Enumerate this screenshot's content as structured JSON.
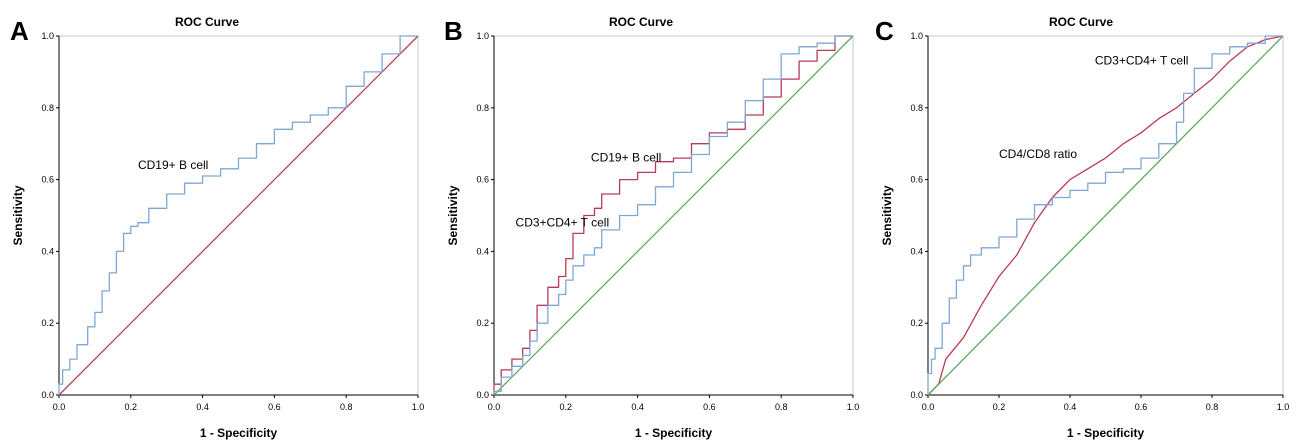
{
  "colors": {
    "blue": "#7fa7d4",
    "red": "#b83a5b",
    "green": "#5fa85f"
  },
  "chart_data": [
    {
      "panel": "A",
      "type": "line",
      "title": "ROC Curve",
      "xlabel": "1 - Specificity",
      "ylabel": "Sensitivity",
      "xlim": [
        0,
        1
      ],
      "ylim": [
        0,
        1
      ],
      "xticks": [
        "0.0",
        "0.2",
        "0.4",
        "0.6",
        "0.8",
        "1.0"
      ],
      "yticks": [
        "0.0",
        "0.2",
        "0.4",
        "0.6",
        "0.8",
        "1.0"
      ],
      "series": [
        {
          "color": "#7fa7d4",
          "step": true,
          "x": [
            0,
            0.01,
            0.03,
            0.05,
            0.08,
            0.1,
            0.12,
            0.14,
            0.16,
            0.18,
            0.2,
            0.22,
            0.25,
            0.3,
            0.35,
            0.4,
            0.45,
            0.5,
            0.55,
            0.6,
            0.65,
            0.7,
            0.75,
            0.8,
            0.85,
            0.9,
            0.95,
            1.0
          ],
          "y": [
            0,
            0.03,
            0.07,
            0.1,
            0.14,
            0.19,
            0.23,
            0.29,
            0.34,
            0.4,
            0.45,
            0.47,
            0.48,
            0.52,
            0.56,
            0.59,
            0.61,
            0.63,
            0.66,
            0.7,
            0.74,
            0.76,
            0.78,
            0.8,
            0.86,
            0.9,
            0.95,
            1.0
          ]
        },
        {
          "color": "#b83a5b",
          "step": false,
          "x": [
            0,
            1
          ],
          "y": [
            0,
            1
          ]
        }
      ],
      "annotations": [
        {
          "text": "CD19+ B cell",
          "x": 0.22,
          "y": 0.63
        }
      ]
    },
    {
      "panel": "B",
      "type": "line",
      "title": "ROC Curve",
      "xlabel": "1 - Specificity",
      "ylabel": "Sensitivity",
      "xlim": [
        0,
        1
      ],
      "ylim": [
        0,
        1
      ],
      "xticks": [
        "0.0",
        "0.2",
        "0.4",
        "0.6",
        "0.8",
        "1.0"
      ],
      "yticks": [
        "0.0",
        "0.2",
        "0.4",
        "0.6",
        "0.8",
        "1.0"
      ],
      "series": [
        {
          "color": "#b83a5b",
          "step": true,
          "x": [
            0,
            0.02,
            0.05,
            0.08,
            0.1,
            0.12,
            0.15,
            0.18,
            0.2,
            0.22,
            0.25,
            0.28,
            0.3,
            0.35,
            0.4,
            0.45,
            0.5,
            0.55,
            0.6,
            0.65,
            0.7,
            0.75,
            0.8,
            0.85,
            0.9,
            0.95,
            1.0
          ],
          "y": [
            0,
            0.03,
            0.07,
            0.1,
            0.13,
            0.18,
            0.25,
            0.3,
            0.33,
            0.38,
            0.45,
            0.5,
            0.52,
            0.56,
            0.6,
            0.62,
            0.65,
            0.66,
            0.7,
            0.73,
            0.74,
            0.78,
            0.83,
            0.88,
            0.93,
            0.96,
            1.0
          ]
        },
        {
          "color": "#7fa7d4",
          "step": true,
          "x": [
            0,
            0.02,
            0.05,
            0.08,
            0.1,
            0.12,
            0.15,
            0.18,
            0.2,
            0.22,
            0.25,
            0.28,
            0.3,
            0.35,
            0.4,
            0.45,
            0.5,
            0.55,
            0.6,
            0.65,
            0.7,
            0.75,
            0.8,
            0.85,
            0.9,
            0.95,
            1.0
          ],
          "y": [
            0,
            0.01,
            0.05,
            0.08,
            0.11,
            0.15,
            0.2,
            0.25,
            0.28,
            0.32,
            0.36,
            0.39,
            0.41,
            0.46,
            0.5,
            0.53,
            0.58,
            0.62,
            0.67,
            0.72,
            0.76,
            0.82,
            0.88,
            0.95,
            0.97,
            0.98,
            1.0
          ]
        },
        {
          "color": "#5fa85f",
          "step": false,
          "x": [
            0,
            1
          ],
          "y": [
            0,
            1
          ]
        }
      ],
      "annotations": [
        {
          "text": "CD19+ B cell",
          "x": 0.27,
          "y": 0.65
        },
        {
          "text": "CD3+CD4+ T cell",
          "x": 0.06,
          "y": 0.47
        }
      ]
    },
    {
      "panel": "C",
      "type": "line",
      "title": "ROC Curve",
      "xlabel": "1 - Specificity",
      "ylabel": "Sensitivity",
      "xlim": [
        0,
        1
      ],
      "ylim": [
        0,
        1
      ],
      "xticks": [
        "0.0",
        "0.2",
        "0.4",
        "0.6",
        "0.8",
        "1.0"
      ],
      "yticks": [
        "0.0",
        "0.2",
        "0.4",
        "0.6",
        "0.8",
        "1.0"
      ],
      "series": [
        {
          "color": "#7fa7d4",
          "step": true,
          "x": [
            0,
            0.01,
            0.02,
            0.04,
            0.06,
            0.08,
            0.1,
            0.12,
            0.15,
            0.2,
            0.25,
            0.3,
            0.35,
            0.4,
            0.45,
            0.5,
            0.55,
            0.6,
            0.65,
            0.7,
            0.72,
            0.75,
            0.8,
            0.85,
            0.9,
            0.95,
            1.0
          ],
          "y": [
            0,
            0.06,
            0.1,
            0.13,
            0.2,
            0.27,
            0.32,
            0.36,
            0.39,
            0.41,
            0.44,
            0.49,
            0.53,
            0.55,
            0.57,
            0.59,
            0.62,
            0.63,
            0.66,
            0.7,
            0.76,
            0.84,
            0.91,
            0.95,
            0.97,
            0.98,
            1.0
          ]
        },
        {
          "color": "#b83a5b",
          "step": false,
          "x": [
            0,
            0.03,
            0.05,
            0.1,
            0.15,
            0.2,
            0.25,
            0.3,
            0.35,
            0.4,
            0.45,
            0.5,
            0.55,
            0.6,
            0.65,
            0.7,
            0.75,
            0.8,
            0.85,
            0.9,
            0.95,
            1.0
          ],
          "y": [
            0,
            0.03,
            0.1,
            0.16,
            0.25,
            0.33,
            0.39,
            0.48,
            0.55,
            0.6,
            0.63,
            0.66,
            0.7,
            0.73,
            0.77,
            0.8,
            0.84,
            0.88,
            0.93,
            0.97,
            0.99,
            1.0
          ]
        },
        {
          "color": "#5fa85f",
          "step": false,
          "x": [
            0,
            1
          ],
          "y": [
            0,
            1
          ]
        }
      ],
      "annotations": [
        {
          "text": "CD3+CD4+ T cell",
          "x": 0.47,
          "y": 0.92
        },
        {
          "text": "CD4/CD8 ratio",
          "x": 0.2,
          "y": 0.66
        }
      ]
    }
  ]
}
